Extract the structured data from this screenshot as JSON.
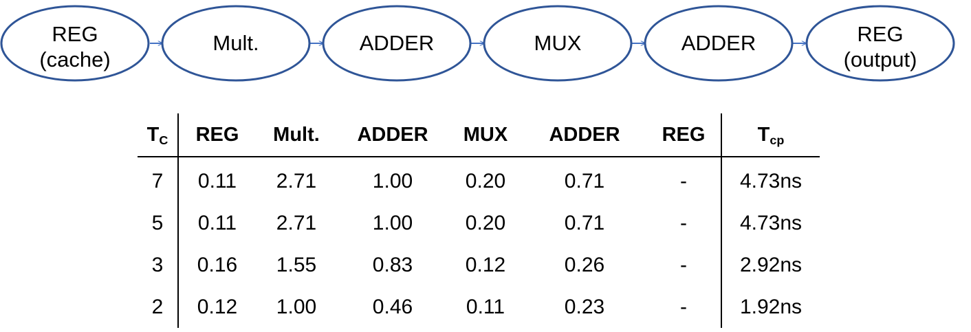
{
  "pipeline": {
    "nodes": [
      {
        "lines": [
          "REG",
          "(cache)"
        ]
      },
      {
        "lines": [
          "Mult."
        ]
      },
      {
        "lines": [
          "ADDER"
        ]
      },
      {
        "lines": [
          "MUX"
        ]
      },
      {
        "lines": [
          "ADDER"
        ]
      },
      {
        "lines": [
          "REG",
          "(output)"
        ]
      }
    ],
    "node_stroke_color": "#2F5597",
    "arrow_color": "#4472C4"
  },
  "table": {
    "header": {
      "tc_main": "T",
      "tc_sub": "C",
      "cols": [
        "REG",
        "Mult.",
        "ADDER",
        "MUX",
        "ADDER",
        "REG"
      ],
      "tcp_main": "T",
      "tcp_sub": "cp"
    },
    "rows": [
      {
        "tc": "7",
        "values": [
          "0.11",
          "2.71",
          "1.00",
          "0.20",
          "0.71",
          "-"
        ],
        "tcp": "4.73ns"
      },
      {
        "tc": "5",
        "values": [
          "0.11",
          "2.71",
          "1.00",
          "0.20",
          "0.71",
          "-"
        ],
        "tcp": "4.73ns"
      },
      {
        "tc": "3",
        "values": [
          "0.16",
          "1.55",
          "0.83",
          "0.12",
          "0.26",
          "-"
        ],
        "tcp": "2.92ns"
      },
      {
        "tc": "2",
        "values": [
          "0.12",
          "1.00",
          "0.46",
          "0.11",
          "0.23",
          "-"
        ],
        "tcp": "1.92ns"
      }
    ]
  }
}
